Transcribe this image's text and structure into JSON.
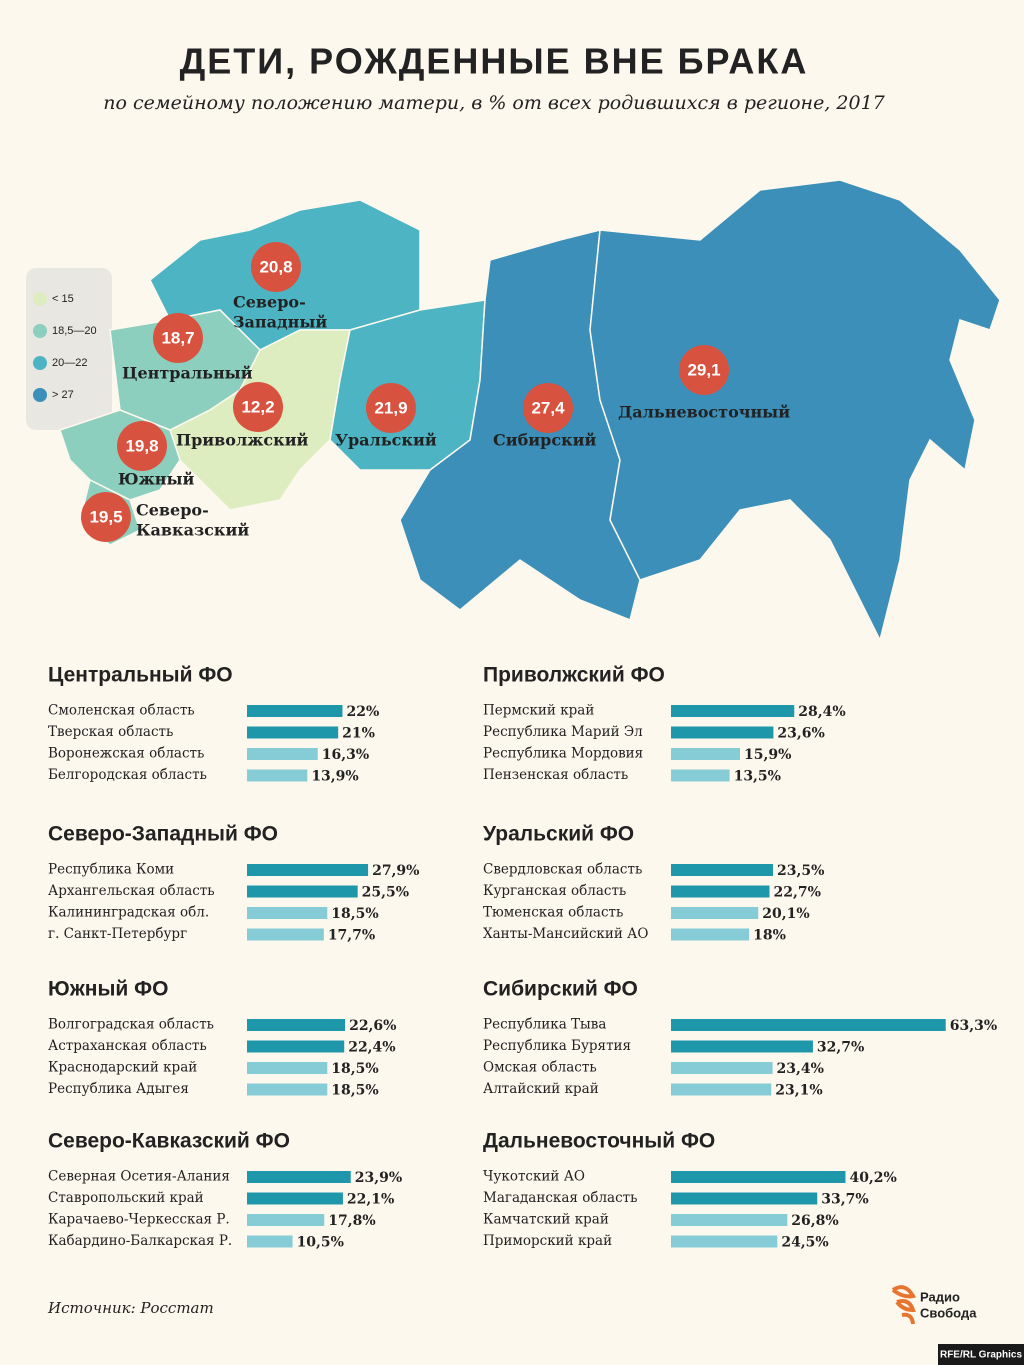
{
  "title": "ДЕТИ, РОЖДЕННЫЕ ВНЕ БРАКА",
  "subtitle": "по семейному положению матери, в % от всех родившихся в регионе, 2017",
  "map": {
    "legend": [
      {
        "label": "< 15",
        "color": "#deedc0"
      },
      {
        "label": "18,5—20",
        "color": "#8ccfbf"
      },
      {
        "label": "20—22",
        "color": "#4db4c3"
      },
      {
        "label": "> 27",
        "color": "#3b8fb8"
      }
    ],
    "districts": [
      {
        "name": [
          "Северо-",
          "Западный"
        ],
        "value": 20.8,
        "value_label": "20,8",
        "color": "#4db4c3"
      },
      {
        "name": [
          "Центральный"
        ],
        "value": 18.7,
        "value_label": "18,7",
        "color": "#8ccfbf"
      },
      {
        "name": [
          "Приволжский"
        ],
        "value": 12.2,
        "value_label": "12,2",
        "color": "#deedc0"
      },
      {
        "name": [
          "Южный"
        ],
        "value": 19.8,
        "value_label": "19,8",
        "color": "#8ccfbf"
      },
      {
        "name": [
          "Северо-",
          "Кавказский"
        ],
        "value": 19.5,
        "value_label": "19,5",
        "color": "#8ccfbf"
      },
      {
        "name": [
          "Уральский"
        ],
        "value": 21.9,
        "value_label": "21,9",
        "color": "#4db4c3"
      },
      {
        "name": [
          "Сибирский"
        ],
        "value": 27.4,
        "value_label": "27,4",
        "color": "#3b8fb8"
      },
      {
        "name": [
          "Дальневосточный"
        ],
        "value": 29.1,
        "value_label": "29,1",
        "color": "#3b8fb8"
      }
    ]
  },
  "chart_data": [
    {
      "type": "bar",
      "title": "Центральный ФО",
      "categories": [
        "Смоленская область",
        "Тверская область",
        "Воронежская область",
        "Белгородская область"
      ],
      "values": [
        22,
        21,
        16.3,
        13.9
      ],
      "value_labels": [
        "22%",
        "21%",
        "16,3%",
        "13,9%"
      ],
      "colors": [
        "#1f97aa",
        "#1f97aa",
        "#86ccd6",
        "#86ccd6"
      ]
    },
    {
      "type": "bar",
      "title": "Приволжский ФО",
      "categories": [
        "Пермский край",
        "Республика Марий Эл",
        "Республика Мордовия",
        "Пензенская область"
      ],
      "values": [
        28.4,
        23.6,
        15.9,
        13.5
      ],
      "value_labels": [
        "28,4%",
        "23,6%",
        "15,9%",
        "13,5%"
      ],
      "colors": [
        "#1f97aa",
        "#1f97aa",
        "#86ccd6",
        "#86ccd6"
      ]
    },
    {
      "type": "bar",
      "title": "Северо-Западный ФО",
      "categories": [
        "Республика Коми",
        "Архангельская область",
        "Калининградская обл.",
        "г. Санкт-Петербург"
      ],
      "values": [
        27.9,
        25.5,
        18.5,
        17.7
      ],
      "value_labels": [
        "27,9%",
        "25,5%",
        "18,5%",
        "17,7%"
      ],
      "colors": [
        "#1f97aa",
        "#1f97aa",
        "#86ccd6",
        "#86ccd6"
      ]
    },
    {
      "type": "bar",
      "title": "Уральский ФО",
      "categories": [
        "Свердловская область",
        "Курганская область",
        "Тюменская область",
        "Ханты-Мансийский АО"
      ],
      "values": [
        23.5,
        22.7,
        20.1,
        18
      ],
      "value_labels": [
        "23,5%",
        "22,7%",
        "20,1%",
        "18%"
      ],
      "colors": [
        "#1f97aa",
        "#1f97aa",
        "#86ccd6",
        "#86ccd6"
      ]
    },
    {
      "type": "bar",
      "title": "Южный ФО",
      "categories": [
        "Волгоградская область",
        "Астраханская область",
        "Краснодарский край",
        "Республика Адыгея"
      ],
      "values": [
        22.6,
        22.4,
        18.5,
        18.5
      ],
      "value_labels": [
        "22,6%",
        "22,4%",
        "18,5%",
        "18,5%"
      ],
      "colors": [
        "#1f97aa",
        "#1f97aa",
        "#86ccd6",
        "#86ccd6"
      ]
    },
    {
      "type": "bar",
      "title": "Сибирский ФО",
      "categories": [
        "Республика Тыва",
        "Республика Бурятия",
        "Омская область",
        "Алтайский край"
      ],
      "values": [
        63.3,
        32.7,
        23.4,
        23.1
      ],
      "value_labels": [
        "63,3%",
        "32,7%",
        "23,4%",
        "23,1%"
      ],
      "colors": [
        "#1f97aa",
        "#1f97aa",
        "#86ccd6",
        "#86ccd6"
      ]
    },
    {
      "type": "bar",
      "title": "Северо-Кавказский ФО",
      "categories": [
        "Северная Осетия-Алания",
        "Ставропольский край",
        "Карачаево-Черкесская Р.",
        "Кабардино-Балкарская Р."
      ],
      "values": [
        23.9,
        22.1,
        17.8,
        10.5
      ],
      "value_labels": [
        "23,9%",
        "22,1%",
        "17,8%",
        "10,5%"
      ],
      "colors": [
        "#1f97aa",
        "#1f97aa",
        "#86ccd6",
        "#86ccd6"
      ]
    },
    {
      "type": "bar",
      "title": "Дальневосточный ФО",
      "categories": [
        "Чукотский АО",
        "Магаданская область",
        "Камчатский край",
        "Приморский край"
      ],
      "values": [
        40.2,
        33.7,
        26.8,
        24.5
      ],
      "value_labels": [
        "40,2%",
        "33,7%",
        "26,8%",
        "24,5%"
      ],
      "colors": [
        "#1f97aa",
        "#1f97aa",
        "#86ccd6",
        "#86ccd6"
      ]
    }
  ],
  "source": "Источник: Росстат",
  "logo": [
    "Радио",
    "Свобода"
  ],
  "credit": "RFE/RL Graphics"
}
